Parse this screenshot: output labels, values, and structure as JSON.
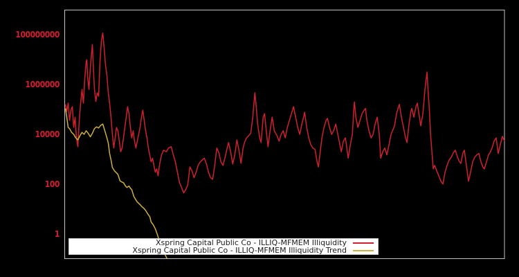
{
  "colors": {
    "background": "#000000",
    "plot_border": "#c3c3c3",
    "tick_label": "#d02030",
    "series_red": "#d02030",
    "series_gold": "#cfb03f",
    "legend_bg": "#ffffff",
    "legend_text": "#1a1a1a"
  },
  "chart_data": {
    "type": "line",
    "title": "",
    "xlabel": "",
    "ylabel": "",
    "x_axis_visible": false,
    "grid": false,
    "yscale": "log",
    "ylim": [
      0.1,
      1000000000
    ],
    "legend_position": "lower-left-inside",
    "yticks": [
      {
        "label": "1",
        "value": 1
      },
      {
        "label": "100",
        "value": 100
      },
      {
        "label": "10000",
        "value": 10000
      },
      {
        "label": "1000000",
        "value": 1000000
      },
      {
        "label": "100000000",
        "value": 100000000
      }
    ],
    "t_range": [
      0,
      636
    ],
    "series": [
      {
        "name": "Xspring Capital Public Co - ILLIQ-MFMEM Illiquidity",
        "color": "#d02030",
        "points": [
          [
            1,
            160000
          ],
          [
            3,
            83000
          ],
          [
            5,
            180000
          ],
          [
            7,
            36000
          ],
          [
            9,
            94000
          ],
          [
            11,
            130000
          ],
          [
            13,
            19000
          ],
          [
            15,
            49000
          ],
          [
            17,
            7200
          ],
          [
            19,
            3200
          ],
          [
            21,
            36000
          ],
          [
            23,
            180000
          ],
          [
            25,
            640000
          ],
          [
            27,
            180000
          ],
          [
            29,
            1700000
          ],
          [
            31,
            8300000
          ],
          [
            32,
            10000000
          ],
          [
            33,
            2300000
          ],
          [
            35,
            640000
          ],
          [
            37,
            4400000
          ],
          [
            39,
            21000000
          ],
          [
            40,
            41000000
          ],
          [
            41,
            8300000
          ],
          [
            43,
            640000
          ],
          [
            45,
            210000
          ],
          [
            47,
            470000
          ],
          [
            49,
            340000
          ],
          [
            51,
            8300000
          ],
          [
            53,
            56000000
          ],
          [
            55,
            120000000
          ],
          [
            57,
            30000000
          ],
          [
            59,
            6000000
          ],
          [
            61,
            2300000
          ],
          [
            63,
            470000
          ],
          [
            65,
            180000
          ],
          [
            67,
            49000
          ],
          [
            69,
            10000
          ],
          [
            71,
            2800
          ],
          [
            73,
            7200
          ],
          [
            75,
            19000
          ],
          [
            77,
            14000
          ],
          [
            79,
            5300
          ],
          [
            81,
            2000
          ],
          [
            83,
            2800
          ],
          [
            85,
            7200
          ],
          [
            87,
            19000
          ],
          [
            89,
            49000
          ],
          [
            91,
            130000
          ],
          [
            93,
            68000
          ],
          [
            95,
            19000
          ],
          [
            97,
            7200
          ],
          [
            99,
            14000
          ],
          [
            101,
            5300
          ],
          [
            103,
            2800
          ],
          [
            105,
            5300
          ],
          [
            107,
            10000
          ],
          [
            109,
            19000
          ],
          [
            111,
            49000
          ],
          [
            113,
            94000
          ],
          [
            115,
            36000
          ],
          [
            117,
            14000
          ],
          [
            119,
            7200
          ],
          [
            121,
            2800
          ],
          [
            123,
            1500
          ],
          [
            125,
            780
          ],
          [
            127,
            1100
          ],
          [
            129,
            560
          ],
          [
            131,
            300
          ],
          [
            133,
            410
          ],
          [
            135,
            215
          ],
          [
            137,
            560
          ],
          [
            140,
            1500
          ],
          [
            143,
            2300
          ],
          [
            147,
            2000
          ],
          [
            150,
            2800
          ],
          [
            154,
            3200
          ],
          [
            157,
            1500
          ],
          [
            160,
            780
          ],
          [
            163,
            300
          ],
          [
            166,
            114
          ],
          [
            169,
            73
          ],
          [
            172,
            44
          ],
          [
            175,
            60
          ],
          [
            178,
            94
          ],
          [
            181,
            490
          ],
          [
            184,
            340
          ],
          [
            187,
            180
          ],
          [
            190,
            300
          ],
          [
            193,
            560
          ],
          [
            196,
            780
          ],
          [
            199,
            940
          ],
          [
            202,
            1100
          ],
          [
            205,
            640
          ],
          [
            208,
            300
          ],
          [
            211,
            180
          ],
          [
            214,
            156
          ],
          [
            217,
            560
          ],
          [
            220,
            2800
          ],
          [
            223,
            1800
          ],
          [
            226,
            780
          ],
          [
            229,
            560
          ],
          [
            232,
            1200
          ],
          [
            235,
            2800
          ],
          [
            237,
            4700
          ],
          [
            240,
            2000
          ],
          [
            243,
            640
          ],
          [
            246,
            1500
          ],
          [
            249,
            6000
          ],
          [
            252,
            2300
          ],
          [
            255,
            680
          ],
          [
            258,
            2800
          ],
          [
            260,
            4700
          ],
          [
            263,
            7200
          ],
          [
            266,
            8800
          ],
          [
            269,
            11000
          ],
          [
            272,
            49000
          ],
          [
            275,
            470000
          ],
          [
            277,
            130000
          ],
          [
            279,
            26000
          ],
          [
            282,
            7200
          ],
          [
            284,
            4700
          ],
          [
            287,
            49000
          ],
          [
            289,
            68000
          ],
          [
            292,
            10000
          ],
          [
            294,
            3200
          ],
          [
            297,
            14000
          ],
          [
            300,
            49000
          ],
          [
            303,
            14000
          ],
          [
            307,
            8800
          ],
          [
            310,
            5300
          ],
          [
            313,
            10000
          ],
          [
            316,
            14000
          ],
          [
            319,
            7200
          ],
          [
            322,
            19000
          ],
          [
            325,
            36000
          ],
          [
            328,
            68000
          ],
          [
            331,
            130000
          ],
          [
            334,
            49000
          ],
          [
            337,
            19000
          ],
          [
            340,
            10000
          ],
          [
            343,
            26000
          ],
          [
            346,
            56000
          ],
          [
            347,
            78000
          ],
          [
            350,
            19000
          ],
          [
            353,
            7200
          ],
          [
            356,
            3800
          ],
          [
            359,
            2800
          ],
          [
            362,
            2500
          ],
          [
            365,
            780
          ],
          [
            367,
            490
          ],
          [
            369,
            1500
          ],
          [
            372,
            7200
          ],
          [
            375,
            19000
          ],
          [
            378,
            36000
          ],
          [
            380,
            44000
          ],
          [
            383,
            19000
          ],
          [
            386,
            10000
          ],
          [
            389,
            14000
          ],
          [
            392,
            26000
          ],
          [
            395,
            10000
          ],
          [
            398,
            3800
          ],
          [
            400,
            2000
          ],
          [
            403,
            5300
          ],
          [
            406,
            7200
          ],
          [
            408,
            2800
          ],
          [
            410,
            1100
          ],
          [
            413,
            3800
          ],
          [
            416,
            10000
          ],
          [
            418,
            94000
          ],
          [
            419,
            200000
          ],
          [
            421,
            49000
          ],
          [
            424,
            19000
          ],
          [
            427,
            36000
          ],
          [
            430,
            68000
          ],
          [
            433,
            94000
          ],
          [
            435,
            110000
          ],
          [
            437,
            36000
          ],
          [
            440,
            14000
          ],
          [
            443,
            7200
          ],
          [
            446,
            10000
          ],
          [
            449,
            26000
          ],
          [
            452,
            49000
          ],
          [
            455,
            10000
          ],
          [
            457,
            1100
          ],
          [
            460,
            2000
          ],
          [
            463,
            2800
          ],
          [
            466,
            1500
          ],
          [
            469,
            3800
          ],
          [
            472,
            10000
          ],
          [
            475,
            16000
          ],
          [
            477,
            22000
          ],
          [
            480,
            68000
          ],
          [
            482,
            110000
          ],
          [
            484,
            160000
          ],
          [
            487,
            49000
          ],
          [
            490,
            19000
          ],
          [
            493,
            7200
          ],
          [
            495,
            4700
          ],
          [
            498,
            26000
          ],
          [
            501,
            94000
          ],
          [
            502,
            110000
          ],
          [
            505,
            49000
          ],
          [
            508,
            130000
          ],
          [
            510,
            180000
          ],
          [
            513,
            49000
          ],
          [
            515,
            22000
          ],
          [
            518,
            68000
          ],
          [
            521,
            640000
          ],
          [
            524,
            3200000
          ],
          [
            526,
            340000
          ],
          [
            527,
            150000
          ],
          [
            529,
            11000
          ],
          [
            531,
            2000
          ],
          [
            533,
            410
          ],
          [
            535,
            560
          ],
          [
            538,
            340
          ],
          [
            541,
            215
          ],
          [
            544,
            130
          ],
          [
            547,
            100
          ],
          [
            550,
            300
          ],
          [
            553,
            560
          ],
          [
            556,
            940
          ],
          [
            559,
            1200
          ],
          [
            562,
            1800
          ],
          [
            565,
            2300
          ],
          [
            568,
            1200
          ],
          [
            571,
            780
          ],
          [
            573,
            680
          ],
          [
            576,
            1800
          ],
          [
            578,
            2300
          ],
          [
            581,
            560
          ],
          [
            584,
            130
          ],
          [
            587,
            300
          ],
          [
            590,
            780
          ],
          [
            593,
            1200
          ],
          [
            596,
            1500
          ],
          [
            599,
            1700
          ],
          [
            602,
            780
          ],
          [
            605,
            470
          ],
          [
            607,
            410
          ],
          [
            610,
            780
          ],
          [
            613,
            1500
          ],
          [
            615,
            1800
          ],
          [
            618,
            2800
          ],
          [
            621,
            5300
          ],
          [
            624,
            7200
          ],
          [
            627,
            1700
          ],
          [
            630,
            3800
          ],
          [
            633,
            8300
          ],
          [
            636,
            5300
          ]
        ]
      },
      {
        "name": "Xspring Capital Public Co - ILLIQ-MFMEM Illiquidity Trend",
        "color": "#cfb03f",
        "points": [
          [
            1,
            110000
          ],
          [
            3,
            49000
          ],
          [
            5,
            19000
          ],
          [
            7,
            17000
          ],
          [
            10,
            12000
          ],
          [
            13,
            10000
          ],
          [
            16,
            7200
          ],
          [
            19,
            6000
          ],
          [
            22,
            8800
          ],
          [
            25,
            12000
          ],
          [
            28,
            10000
          ],
          [
            31,
            14000
          ],
          [
            34,
            11000
          ],
          [
            37,
            8000
          ],
          [
            40,
            11000
          ],
          [
            43,
            17000
          ],
          [
            46,
            20000
          ],
          [
            49,
            18000
          ],
          [
            52,
            23000
          ],
          [
            55,
            26000
          ],
          [
            58,
            14000
          ],
          [
            61,
            7200
          ],
          [
            63,
            4400
          ],
          [
            65,
            1700
          ],
          [
            67,
            940
          ],
          [
            69,
            470
          ],
          [
            72,
            340
          ],
          [
            75,
            280
          ],
          [
            77,
            245
          ],
          [
            80,
            135
          ],
          [
            83,
            120
          ],
          [
            85,
            114
          ],
          [
            88,
            83
          ],
          [
            90,
            73
          ],
          [
            93,
            83
          ],
          [
            95,
            68
          ],
          [
            97,
            60
          ],
          [
            100,
            32
          ],
          [
            103,
            23
          ],
          [
            105,
            19
          ],
          [
            109,
            15
          ],
          [
            112,
            12
          ],
          [
            114,
            11
          ],
          [
            117,
            8.8
          ],
          [
            120,
            6.4
          ],
          [
            123,
            4.9
          ],
          [
            125,
            3
          ],
          [
            128,
            2.3
          ],
          [
            131,
            1.6
          ],
          [
            134,
            0.94
          ],
          [
            137,
            0.5
          ],
          [
            140,
            0.32
          ],
          [
            143,
            0.2
          ],
          [
            146,
            0.13
          ],
          [
            148,
            0.1
          ]
        ]
      }
    ]
  }
}
